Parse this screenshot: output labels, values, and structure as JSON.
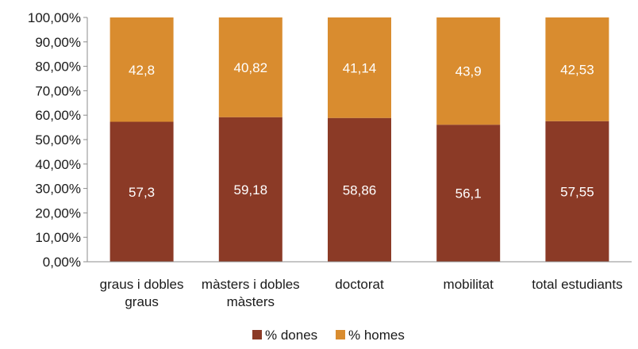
{
  "chart_data": {
    "type": "bar",
    "stacked": true,
    "categories": [
      [
        "graus i dobles",
        "graus"
      ],
      [
        "màsters i dobles",
        "màsters"
      ],
      [
        "doctorat"
      ],
      [
        "mobilitat"
      ],
      [
        "total estudiants"
      ]
    ],
    "series": [
      {
        "name": "% dones",
        "color": "#8b3a26",
        "values": [
          57.3,
          59.18,
          58.86,
          56.1,
          57.55
        ],
        "labels": [
          "57,3",
          "59,18",
          "58,86",
          "56,1",
          "57,55"
        ]
      },
      {
        "name": "% homes",
        "color": "#d98c2f",
        "values": [
          42.8,
          40.82,
          41.14,
          43.9,
          42.53
        ],
        "labels": [
          "42,8",
          "40,82",
          "41,14",
          "43,9",
          "42,53"
        ]
      }
    ],
    "ylim": [
      0,
      100
    ],
    "yticks": [
      0,
      10,
      20,
      30,
      40,
      50,
      60,
      70,
      80,
      90,
      100
    ],
    "ytick_labels": [
      "0,00%",
      "10,00%",
      "20,00%",
      "30,00%",
      "40,00%",
      "50,00%",
      "60,00%",
      "70,00%",
      "80,00%",
      "90,00%",
      "100,00%"
    ],
    "grid": false,
    "legend_position": "bottom",
    "title": "",
    "xlabel": "",
    "ylabel": ""
  }
}
